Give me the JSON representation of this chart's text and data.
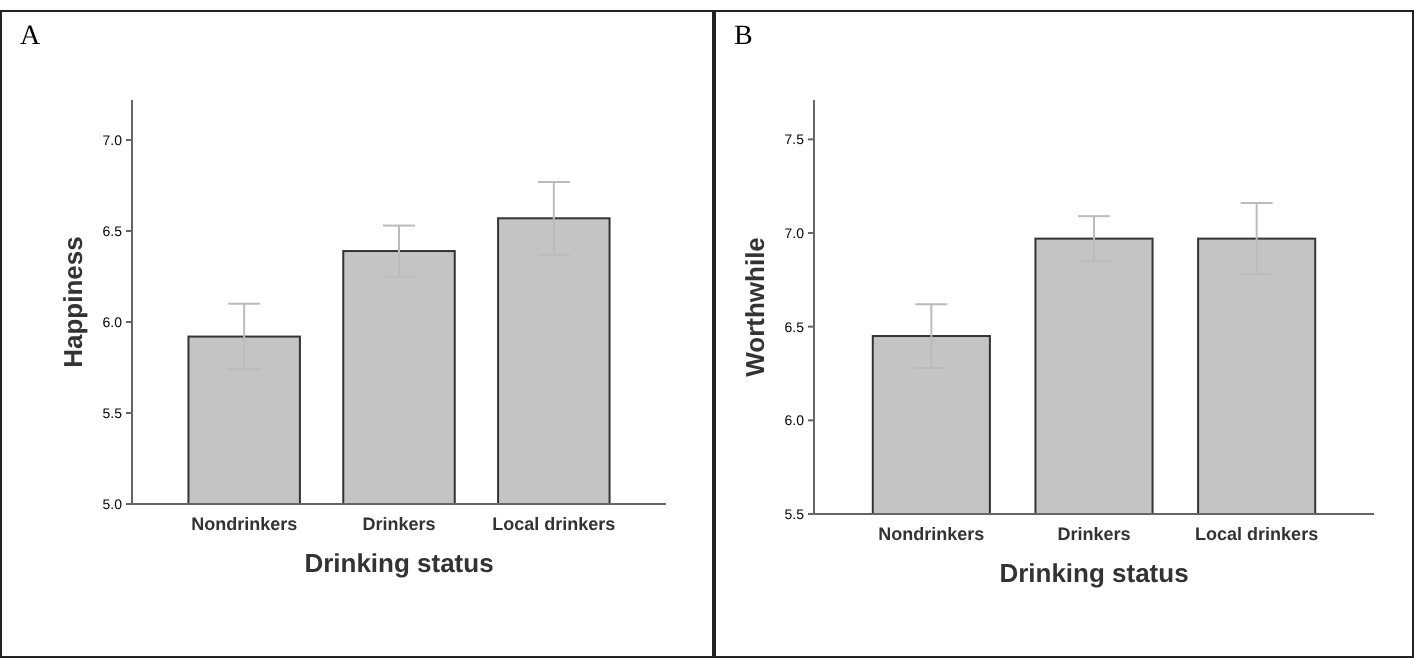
{
  "chart_data": [
    {
      "type": "bar",
      "title": "A",
      "xlabel": "Drinking status",
      "ylabel": "Happiness",
      "categories": [
        "Nondrinkers",
        "Drinkers",
        "Local drinkers"
      ],
      "values": [
        5.92,
        6.39,
        6.57
      ],
      "errors": [
        0.18,
        0.14,
        0.2
      ],
      "color": "#c4c4c4",
      "ylim": [
        5.0,
        7.22
      ],
      "yticks": [
        {
          "value": 5,
          "label": "5.0"
        },
        {
          "value": 5.5,
          "label": "5.5"
        },
        {
          "value": 6,
          "label": "6.0"
        },
        {
          "value": 6.5,
          "label": "6.5"
        },
        {
          "value": 7,
          "label": "7.0"
        }
      ],
      "grid": false
    },
    {
      "type": "bar",
      "title": "B",
      "xlabel": "Drinking status",
      "ylabel": "Worthwhile",
      "categories": [
        "Nondrinkers",
        "Drinkers",
        "Local drinkers"
      ],
      "values": [
        6.45,
        6.97,
        6.97
      ],
      "errors": [
        0.17,
        0.12,
        0.19
      ],
      "color": "#c4c4c4",
      "ylim": [
        5.5,
        7.71
      ],
      "yticks": [
        {
          "value": 5.5,
          "label": "5.5"
        },
        {
          "value": 6,
          "label": "6.0"
        },
        {
          "value": 6.5,
          "label": "6.5"
        },
        {
          "value": 7,
          "label": "7.0"
        },
        {
          "value": 7.5,
          "label": "7.5"
        }
      ],
      "grid": false
    }
  ]
}
